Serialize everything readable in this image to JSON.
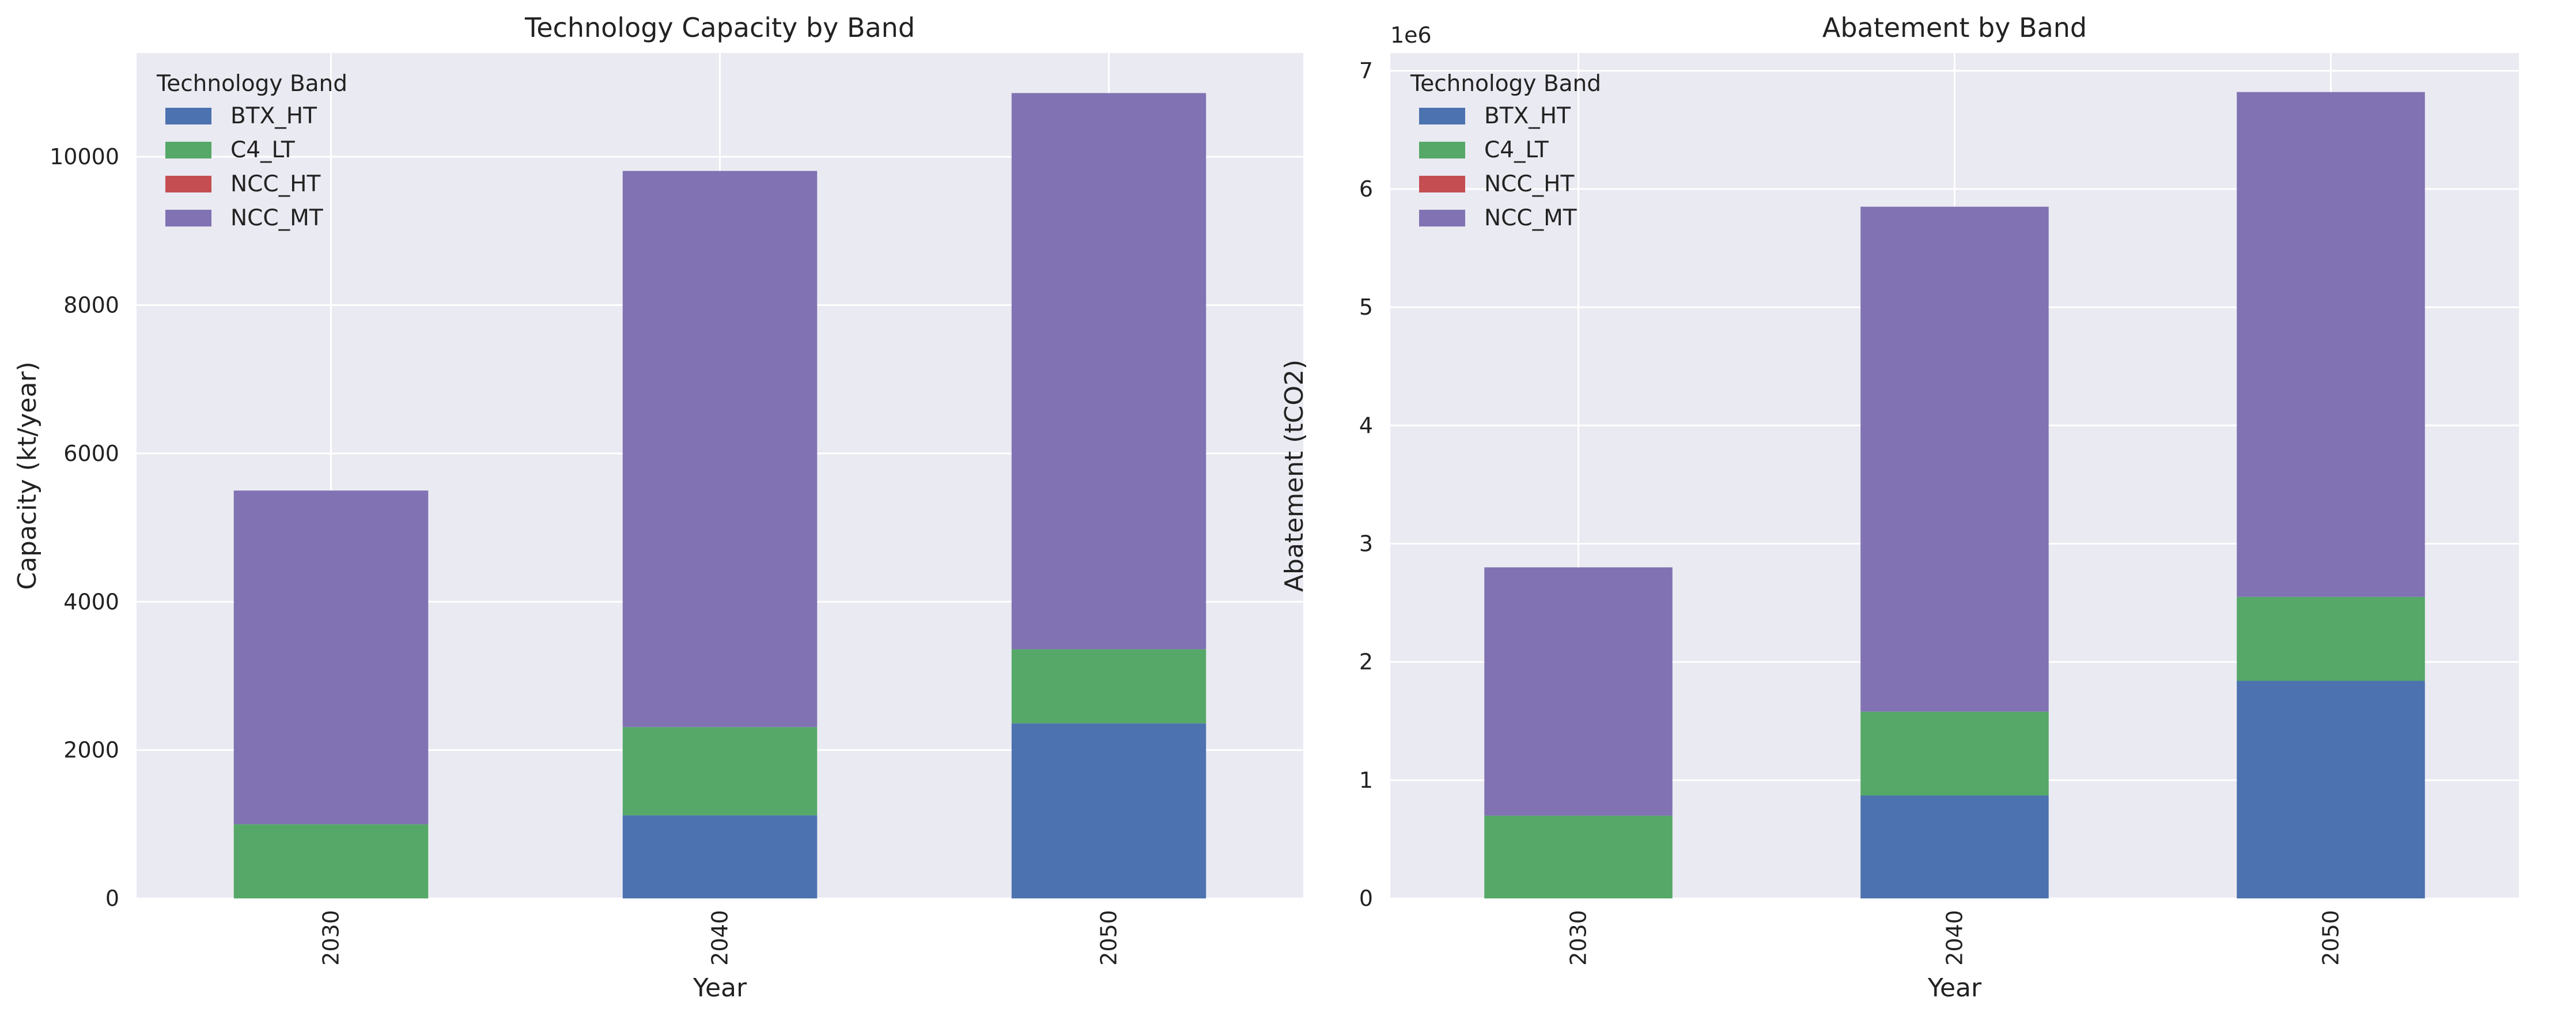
{
  "chart_data": [
    {
      "type": "bar",
      "stacked": true,
      "title": "Technology Capacity by Band",
      "xlabel": "Year",
      "ylabel": "Capacity (kt/year)",
      "categories": [
        "2030",
        "2040",
        "2050"
      ],
      "ylim": [
        0,
        11400
      ],
      "yticks": [
        0,
        2000,
        4000,
        6000,
        8000,
        10000
      ],
      "ytick_labels": [
        "0",
        "2000",
        "4000",
        "6000",
        "8000",
        "10000"
      ],
      "offset_text": "",
      "grid": true,
      "legend_title": "Technology Band",
      "legend_position": "top-left",
      "series": [
        {
          "name": "BTX_HT",
          "color": "#4c72b0",
          "values": [
            0,
            1120,
            2360
          ]
        },
        {
          "name": "C4_LT",
          "color": "#55a868",
          "values": [
            1000,
            1190,
            1000
          ]
        },
        {
          "name": "NCC_HT",
          "color": "#c44e52",
          "values": [
            0,
            0,
            0
          ]
        },
        {
          "name": "NCC_MT",
          "color": "#8172b3",
          "values": [
            4500,
            7500,
            7500
          ]
        }
      ]
    },
    {
      "type": "bar",
      "stacked": true,
      "title": "Abatement by Band",
      "xlabel": "Year",
      "ylabel": "Abatement (tCO2)",
      "categories": [
        "2030",
        "2040",
        "2050"
      ],
      "ylim": [
        0,
        7150000
      ],
      "yticks": [
        0,
        1000000,
        2000000,
        3000000,
        4000000,
        5000000,
        6000000,
        7000000
      ],
      "ytick_labels": [
        "0",
        "1",
        "2",
        "3",
        "4",
        "5",
        "6",
        "7"
      ],
      "offset_text": "1e6",
      "grid": true,
      "legend_title": "Technology Band",
      "legend_position": "top-left",
      "series": [
        {
          "name": "BTX_HT",
          "color": "#4c72b0",
          "values": [
            0,
            870000,
            1840000
          ]
        },
        {
          "name": "C4_LT",
          "color": "#55a868",
          "values": [
            700000,
            710000,
            710000
          ]
        },
        {
          "name": "NCC_HT",
          "color": "#c44e52",
          "values": [
            0,
            0,
            0
          ]
        },
        {
          "name": "NCC_MT",
          "color": "#8172b3",
          "values": [
            2100000,
            4270000,
            4270000
          ]
        }
      ]
    }
  ]
}
